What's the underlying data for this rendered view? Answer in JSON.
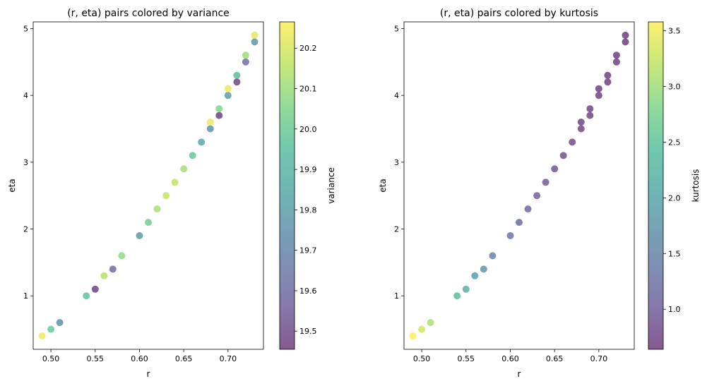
{
  "chart_data": [
    {
      "type": "scatter",
      "title": "(r, eta) pairs colored by variance",
      "xlabel": "r",
      "ylabel": "eta",
      "xlim": [
        0.48,
        0.74
      ],
      "ylim": [
        0.2,
        5.1
      ],
      "xticks": [
        "0.50",
        "0.55",
        "0.60",
        "0.65",
        "0.70"
      ],
      "yticks": [
        "1",
        "2",
        "3",
        "4",
        "5"
      ],
      "grid": false,
      "colorbar": {
        "label": "variance",
        "range": [
          19.455,
          20.265
        ],
        "ticks": [
          "19.5",
          "19.6",
          "19.7",
          "19.8",
          "19.9",
          "20.0",
          "20.1",
          "20.2"
        ],
        "colormap": "viridis"
      },
      "points": [
        {
          "x": 0.49,
          "y": 0.4,
          "c": 20.24
        },
        {
          "x": 0.5,
          "y": 0.5,
          "c": 20.0
        },
        {
          "x": 0.51,
          "y": 0.6,
          "c": 19.75
        },
        {
          "x": 0.54,
          "y": 1.0,
          "c": 19.97
        },
        {
          "x": 0.55,
          "y": 1.1,
          "c": 19.47
        },
        {
          "x": 0.56,
          "y": 1.3,
          "c": 20.15
        },
        {
          "x": 0.57,
          "y": 1.4,
          "c": 19.6
        },
        {
          "x": 0.58,
          "y": 1.6,
          "c": 20.08
        },
        {
          "x": 0.6,
          "y": 1.9,
          "c": 19.8
        },
        {
          "x": 0.61,
          "y": 2.1,
          "c": 20.02
        },
        {
          "x": 0.62,
          "y": 2.3,
          "c": 20.12
        },
        {
          "x": 0.63,
          "y": 2.5,
          "c": 20.17
        },
        {
          "x": 0.64,
          "y": 2.7,
          "c": 20.16
        },
        {
          "x": 0.65,
          "y": 2.9,
          "c": 20.12
        },
        {
          "x": 0.66,
          "y": 3.1,
          "c": 19.98
        },
        {
          "x": 0.67,
          "y": 3.3,
          "c": 19.85
        },
        {
          "x": 0.68,
          "y": 3.5,
          "c": 19.75
        },
        {
          "x": 0.68,
          "y": 3.6,
          "c": 20.24
        },
        {
          "x": 0.69,
          "y": 3.7,
          "c": 19.47
        },
        {
          "x": 0.69,
          "y": 3.8,
          "c": 20.05
        },
        {
          "x": 0.7,
          "y": 4.0,
          "c": 19.8
        },
        {
          "x": 0.7,
          "y": 4.1,
          "c": 20.24
        },
        {
          "x": 0.71,
          "y": 4.2,
          "c": 19.48
        },
        {
          "x": 0.71,
          "y": 4.3,
          "c": 19.95
        },
        {
          "x": 0.72,
          "y": 4.5,
          "c": 19.62
        },
        {
          "x": 0.72,
          "y": 4.6,
          "c": 20.1
        },
        {
          "x": 0.73,
          "y": 4.8,
          "c": 19.77
        },
        {
          "x": 0.73,
          "y": 4.9,
          "c": 20.22
        }
      ]
    },
    {
      "type": "scatter",
      "title": "(r, eta) pairs colored by kurtosis",
      "xlabel": "r",
      "ylabel": "eta",
      "xlim": [
        0.48,
        0.74
      ],
      "ylim": [
        0.2,
        5.1
      ],
      "xticks": [
        "0.50",
        "0.55",
        "0.60",
        "0.65",
        "0.70"
      ],
      "yticks": [
        "1",
        "2",
        "3",
        "4",
        "5"
      ],
      "grid": false,
      "colorbar": {
        "label": "kurtosis",
        "range": [
          0.64,
          3.58
        ],
        "ticks": [
          "1.0",
          "1.5",
          "2.0",
          "2.5",
          "3.0",
          "3.5"
        ],
        "colormap": "viridis"
      },
      "points": [
        {
          "x": 0.49,
          "y": 0.4,
          "c": 3.55
        },
        {
          "x": 0.5,
          "y": 0.5,
          "c": 3.3
        },
        {
          "x": 0.51,
          "y": 0.6,
          "c": 3.1
        },
        {
          "x": 0.54,
          "y": 1.0,
          "c": 2.4
        },
        {
          "x": 0.55,
          "y": 1.1,
          "c": 2.2
        },
        {
          "x": 0.56,
          "y": 1.3,
          "c": 1.9
        },
        {
          "x": 0.57,
          "y": 1.4,
          "c": 1.75
        },
        {
          "x": 0.58,
          "y": 1.6,
          "c": 1.55
        },
        {
          "x": 0.6,
          "y": 1.9,
          "c": 1.3
        },
        {
          "x": 0.61,
          "y": 2.1,
          "c": 1.2
        },
        {
          "x": 0.62,
          "y": 2.3,
          "c": 1.1
        },
        {
          "x": 0.63,
          "y": 2.5,
          "c": 1.0
        },
        {
          "x": 0.64,
          "y": 2.7,
          "c": 0.95
        },
        {
          "x": 0.65,
          "y": 2.9,
          "c": 0.9
        },
        {
          "x": 0.66,
          "y": 3.1,
          "c": 0.85
        },
        {
          "x": 0.67,
          "y": 3.3,
          "c": 0.8
        },
        {
          "x": 0.68,
          "y": 3.5,
          "c": 0.75
        },
        {
          "x": 0.68,
          "y": 3.6,
          "c": 0.75
        },
        {
          "x": 0.69,
          "y": 3.7,
          "c": 0.72
        },
        {
          "x": 0.69,
          "y": 3.8,
          "c": 0.72
        },
        {
          "x": 0.7,
          "y": 4.0,
          "c": 0.7
        },
        {
          "x": 0.7,
          "y": 4.1,
          "c": 0.7
        },
        {
          "x": 0.71,
          "y": 4.2,
          "c": 0.68
        },
        {
          "x": 0.71,
          "y": 4.3,
          "c": 0.68
        },
        {
          "x": 0.72,
          "y": 4.5,
          "c": 0.66
        },
        {
          "x": 0.72,
          "y": 4.6,
          "c": 0.66
        },
        {
          "x": 0.73,
          "y": 4.8,
          "c": 0.65
        },
        {
          "x": 0.73,
          "y": 4.9,
          "c": 0.65
        }
      ]
    }
  ]
}
